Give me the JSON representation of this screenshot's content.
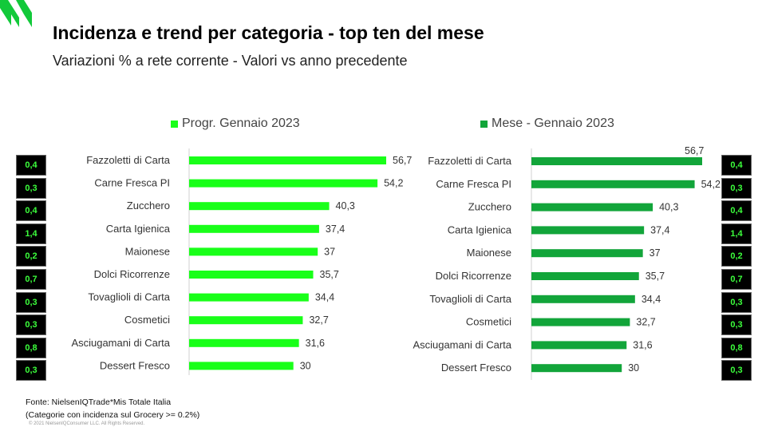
{
  "header": {
    "title": "Incidenza e trend per categoria - top ten del mese",
    "subtitle": "Variazioni % a rete corrente - Valori vs anno precedente"
  },
  "footer": {
    "source": "Fonte: NielsenIQTrade*Mis Totale Italia",
    "note": "(Categorie con incidenza sul Grocery >= 0.2%)",
    "copyright": "© 2021 NielsenIQConsumer LLC. All Rights Reserved."
  },
  "colors": {
    "left_series": "#19ff19",
    "right_series": "#12a53a",
    "logo": "#12c93a",
    "incidence_box_bg": "#000000",
    "incidence_text": "#3cff3c"
  },
  "incidence": {
    "left": [
      "0,4",
      "0,3",
      "0,4",
      "1,4",
      "0,2",
      "0,7",
      "0,3",
      "0,3",
      "0,8",
      "0,3"
    ],
    "right": [
      "0,4",
      "0,3",
      "0,4",
      "1,4",
      "0,2",
      "0,7",
      "0,3",
      "0,3",
      "0,8",
      "0,3"
    ]
  },
  "chart_data": [
    {
      "type": "bar",
      "orientation": "horizontal",
      "categories": [
        "Fazzoletti di Carta",
        "Carne Fresca PI",
        "Zucchero",
        "Carta Igienica",
        "Maionese",
        "Dolci Ricorrenze",
        "Tovaglioli di Carta",
        "Cosmetici",
        "Asciugamani di Carta",
        "Dessert Fresco"
      ],
      "series": [
        {
          "name": "Progr. Gennaio 2023",
          "values": [
            56.7,
            54.2,
            40.3,
            37.4,
            37,
            35.7,
            34.4,
            32.7,
            31.6,
            30
          ]
        }
      ],
      "value_labels": [
        "56,7",
        "54,2",
        "40,3",
        "37,4",
        "37",
        "35,7",
        "34,4",
        "32,7",
        "31,6",
        "30"
      ],
      "legend": "top",
      "grid": false
    },
    {
      "type": "bar",
      "orientation": "horizontal",
      "categories": [
        "Fazzoletti di Carta",
        "Carne Fresca PI",
        "Zucchero",
        "Carta Igienica",
        "Maionese",
        "Dolci Ricorrenze",
        "Tovaglioli di Carta",
        "Cosmetici",
        "Asciugamani di Carta",
        "Dessert Fresco"
      ],
      "series": [
        {
          "name": "Mese - Gennaio 2023",
          "values": [
            56.7,
            54.2,
            40.3,
            37.4,
            37,
            35.7,
            34.4,
            32.7,
            31.6,
            30
          ]
        }
      ],
      "value_labels": [
        "56,7",
        "54,2",
        "40,3",
        "37,4",
        "37",
        "35,7",
        "34,4",
        "32,7",
        "31,6",
        "30"
      ],
      "legend": "top",
      "grid": false
    }
  ]
}
